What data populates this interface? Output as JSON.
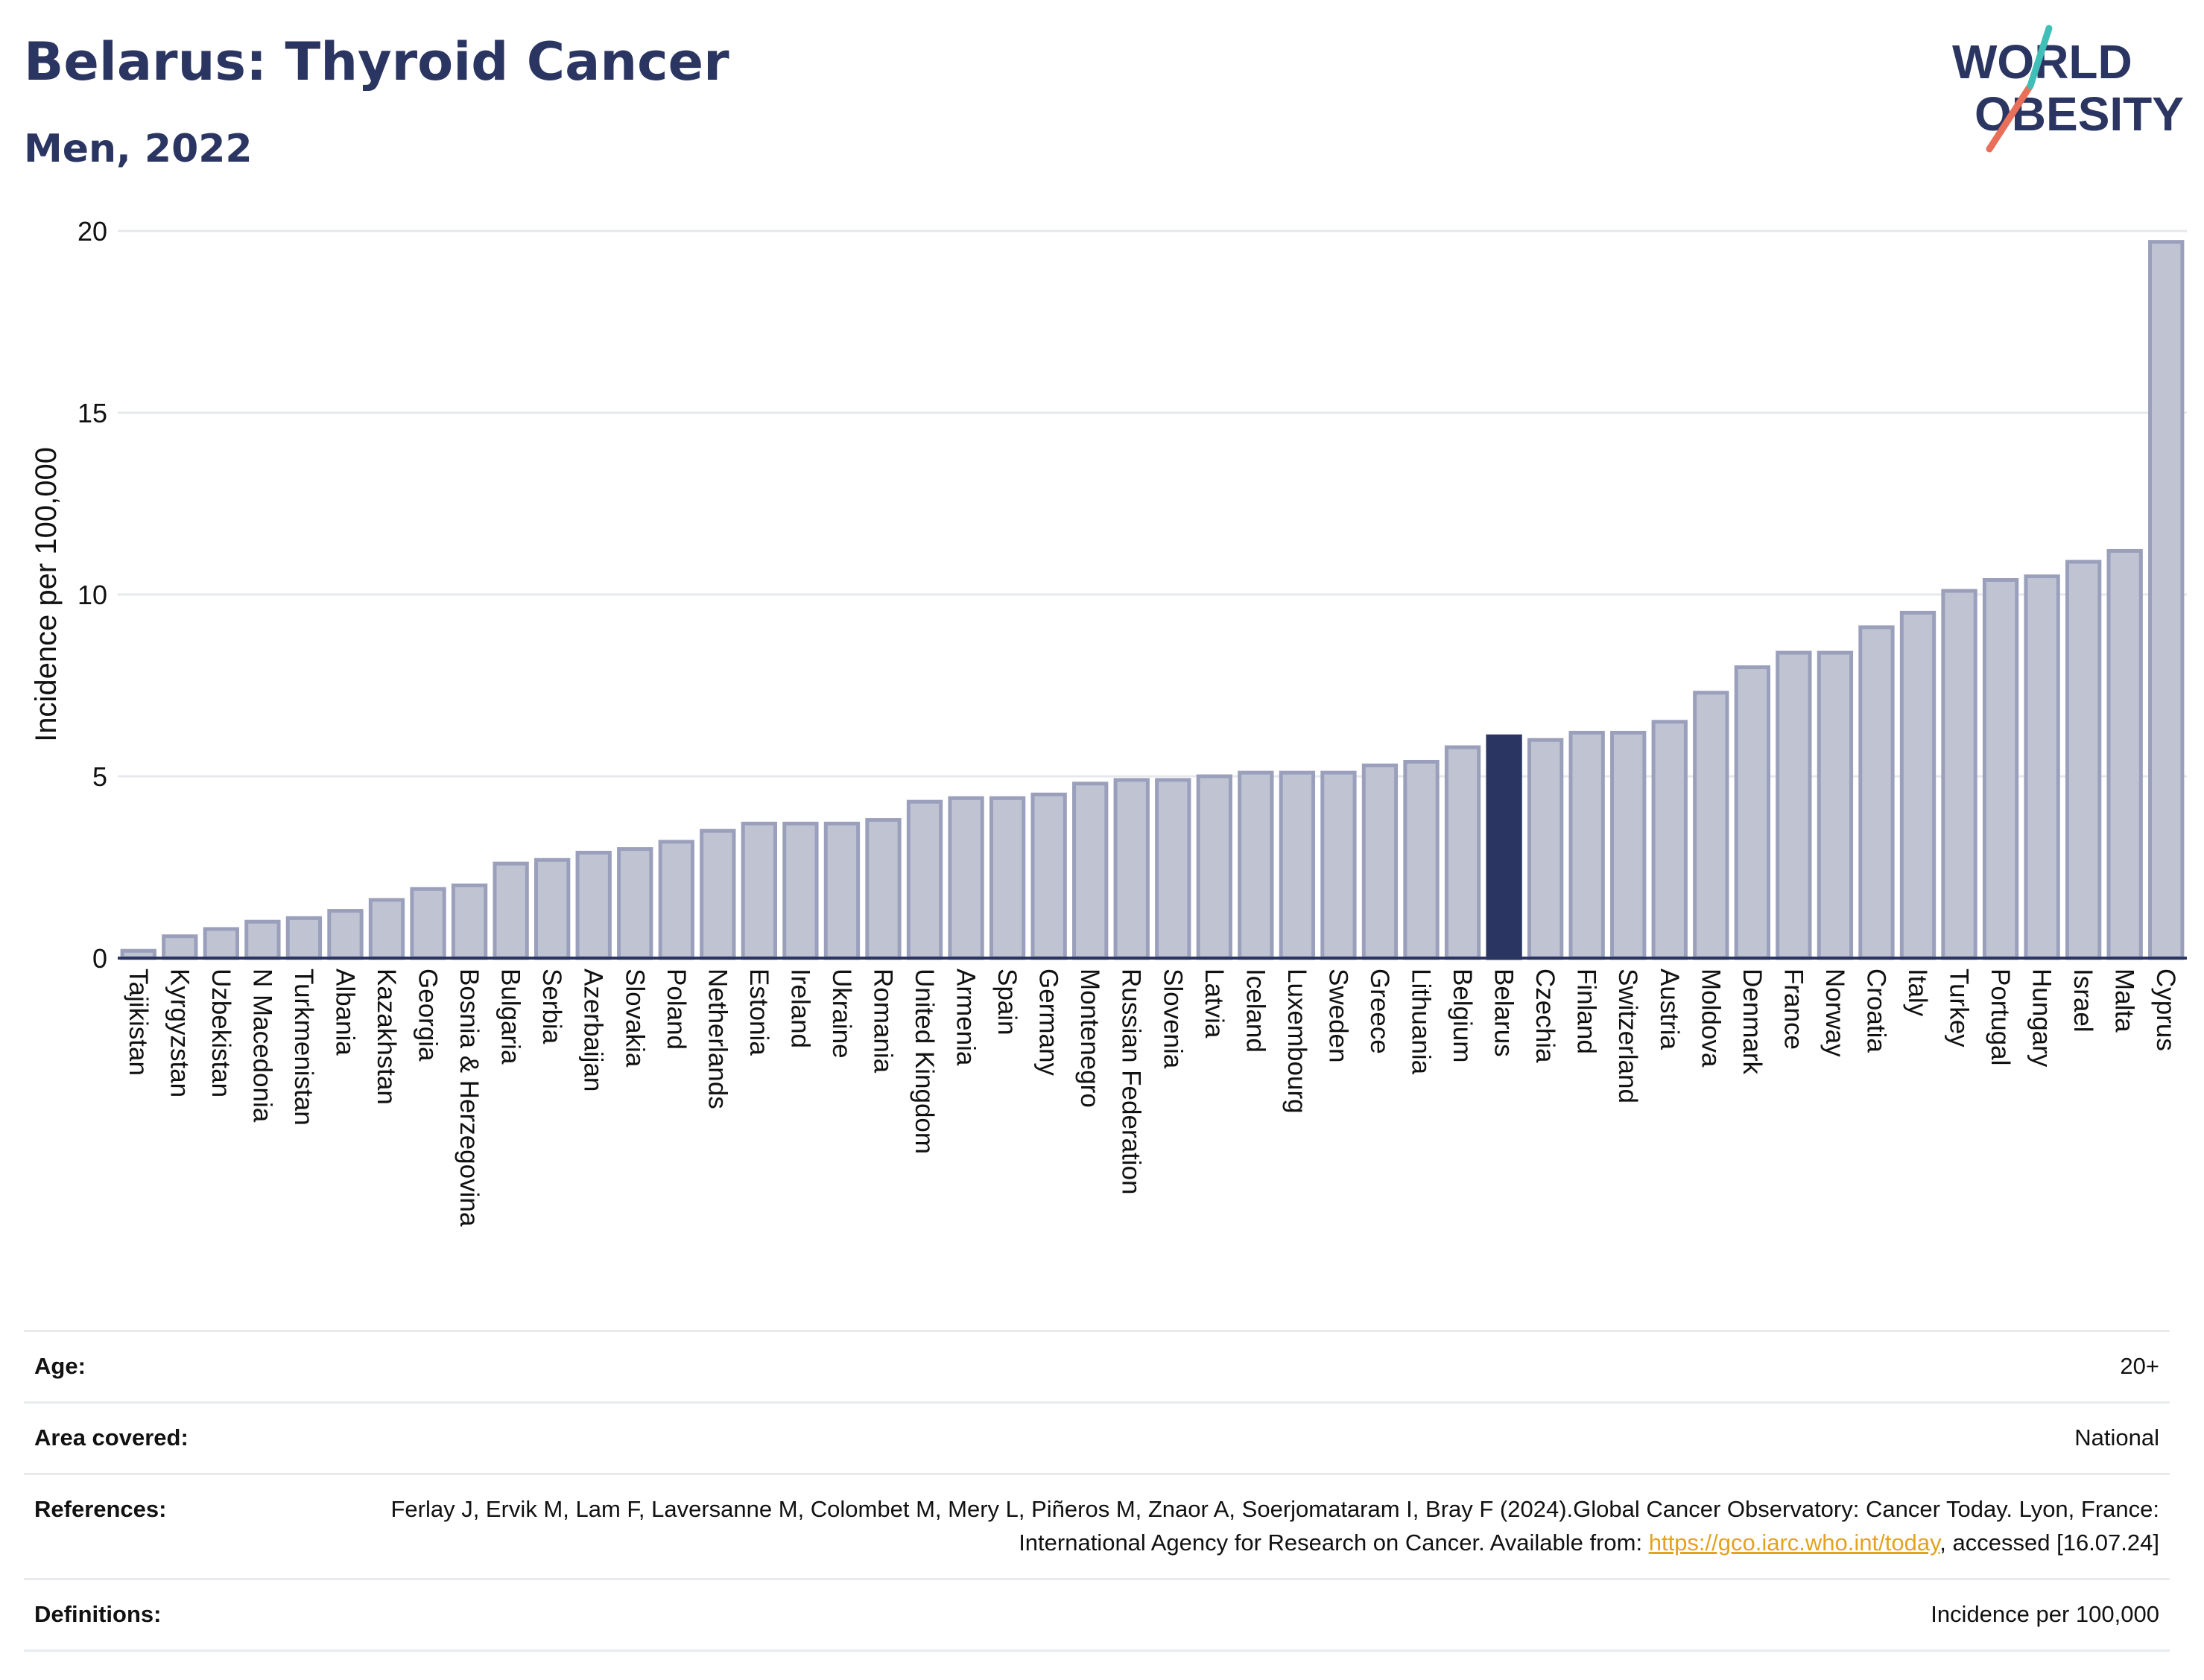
{
  "header": {
    "title": "Belarus: Thyroid Cancer",
    "subtitle": "Men, 2022",
    "logo_line1": "WORLD",
    "logo_line2": "OBESITY"
  },
  "colors": {
    "bar": "#c0c4d2",
    "bar_border": "#9aa0bb",
    "highlight": "#2b3561",
    "text": "#2b3561",
    "grid": "#e6e8ee",
    "logo_red": "#e8705a",
    "logo_teal": "#3fbfb8"
  },
  "chart_data": {
    "type": "bar",
    "ylabel": "Incidence per 100,000",
    "ylim": [
      0,
      20
    ],
    "yticks": [
      0,
      5,
      10,
      15,
      20
    ],
    "grid": true,
    "highlight": "Belarus",
    "categories": [
      "Tajikistan",
      "Kyrgyzstan",
      "Uzbekistan",
      "N Macedonia",
      "Turkmenistan",
      "Albania",
      "Kazakhstan",
      "Georgia",
      "Bosnia & Herzegovina",
      "Bulgaria",
      "Serbia",
      "Azerbaijan",
      "Slovakia",
      "Poland",
      "Netherlands",
      "Estonia",
      "Ireland",
      "Ukraine",
      "Romania",
      "United Kingdom",
      "Armenia",
      "Spain",
      "Germany",
      "Montenegro",
      "Russian Federation",
      "Slovenia",
      "Latvia",
      "Iceland",
      "Luxembourg",
      "Sweden",
      "Greece",
      "Lithuania",
      "Belgium",
      "Belarus",
      "Czechia",
      "Finland",
      "Switzerland",
      "Austria",
      "Moldova",
      "Denmark",
      "France",
      "Norway",
      "Croatia",
      "Italy",
      "Turkey",
      "Portugal",
      "Hungary",
      "Israel",
      "Malta",
      "Cyprus"
    ],
    "values": [
      0.2,
      0.6,
      0.8,
      1.0,
      1.1,
      1.3,
      1.6,
      1.9,
      2.0,
      2.6,
      2.7,
      2.9,
      3.0,
      3.2,
      3.5,
      3.7,
      3.7,
      3.7,
      3.8,
      4.3,
      4.4,
      4.4,
      4.5,
      4.8,
      4.9,
      4.9,
      5.0,
      5.1,
      5.1,
      5.1,
      5.3,
      5.4,
      5.8,
      6.1,
      6.0,
      6.2,
      6.2,
      6.5,
      7.3,
      8.0,
      8.4,
      8.4,
      9.1,
      9.5,
      10.1,
      10.4,
      10.5,
      10.9,
      11.2,
      19.7
    ]
  },
  "meta": {
    "age_label": "Age:",
    "age_value": "20+",
    "area_label": "Area covered:",
    "area_value": "National",
    "ref_label": "References:",
    "ref_text_1": "Ferlay J, Ervik M, Lam F, Laversanne M, Colombet M, Mery L, Piñeros M, Znaor A, Soerjomataram I, Bray F (2024).Global Cancer Observatory: Cancer Today. Lyon, France: International Agency for Research on Cancer. Available from: ",
    "ref_link": "https://gco.iarc.who.int/today",
    "ref_text_2": ", accessed [16.07.24]",
    "def_label": "Definitions:",
    "def_value": "Incidence per 100,000"
  }
}
